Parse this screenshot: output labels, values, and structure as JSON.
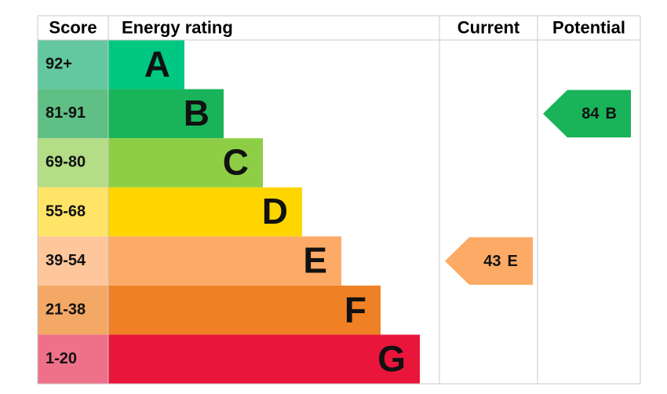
{
  "chart_data": {
    "type": "energy-rating",
    "headers": {
      "score": "Score",
      "rating": "Energy rating",
      "current": "Current",
      "potential": "Potential"
    },
    "bands": [
      {
        "score": "92+",
        "letter": "A",
        "color": "#00c781",
        "score_color": "#63c8a0"
      },
      {
        "score": "81-91",
        "letter": "B",
        "color": "#19b459",
        "score_color": "#5fbf84"
      },
      {
        "score": "69-80",
        "letter": "C",
        "color": "#8dce46",
        "score_color": "#b3dd86"
      },
      {
        "score": "55-68",
        "letter": "D",
        "color": "#ffd500",
        "score_color": "#ffe468"
      },
      {
        "score": "39-54",
        "letter": "E",
        "color": "#fcaa65",
        "score_color": "#fdc79b"
      },
      {
        "score": "21-38",
        "letter": "F",
        "color": "#ef8023",
        "score_color": "#f4a866"
      },
      {
        "score": "1-20",
        "letter": "G",
        "color": "#e9153b",
        "score_color": "#ef7189"
      }
    ],
    "current": {
      "value": 43,
      "letter": "E"
    },
    "potential": {
      "value": 84,
      "letter": "B"
    }
  }
}
